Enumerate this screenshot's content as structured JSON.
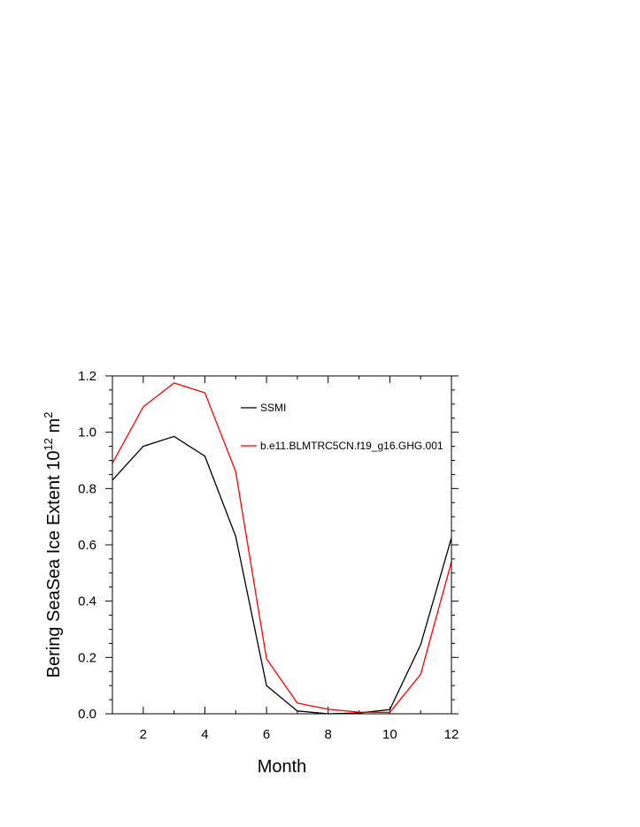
{
  "chart_data": {
    "type": "line",
    "title": "",
    "xlabel": "Month",
    "ylabel_parts": [
      "Bering SeaSea Ice Extent 10",
      "12",
      " m",
      "2"
    ],
    "xlim": [
      1,
      12
    ],
    "ylim": [
      0,
      1.2
    ],
    "x_ticks": [
      2,
      4,
      6,
      8,
      10,
      12
    ],
    "x_tick_labels": [
      "2",
      "4",
      "6",
      "8",
      "10",
      "12"
    ],
    "y_ticks": [
      0,
      0.2,
      0.4,
      0.6,
      0.8,
      1.0,
      1.2
    ],
    "y_tick_labels": [
      "0.0",
      "0.2",
      "0.4",
      "0.6",
      "0.8",
      "1.0",
      "1.2"
    ],
    "grid": false,
    "legend_position": "top-right",
    "x": [
      1,
      2,
      3,
      4,
      5,
      6,
      7,
      8,
      9,
      10,
      11,
      12
    ],
    "series": [
      {
        "name": "SSMI",
        "color": "#000000",
        "values": [
          0.83,
          0.95,
          0.985,
          0.915,
          0.63,
          0.1,
          0.01,
          0.0,
          0.003,
          0.015,
          0.245,
          0.625
        ]
      },
      {
        "name": "b.e11.BLMTRC5CN.f19_g16.GHG.001",
        "color": "#ff0000",
        "values": [
          0.89,
          1.09,
          1.175,
          1.14,
          0.86,
          0.195,
          0.038,
          0.016,
          0.006,
          0.005,
          0.14,
          0.54
        ]
      }
    ]
  }
}
